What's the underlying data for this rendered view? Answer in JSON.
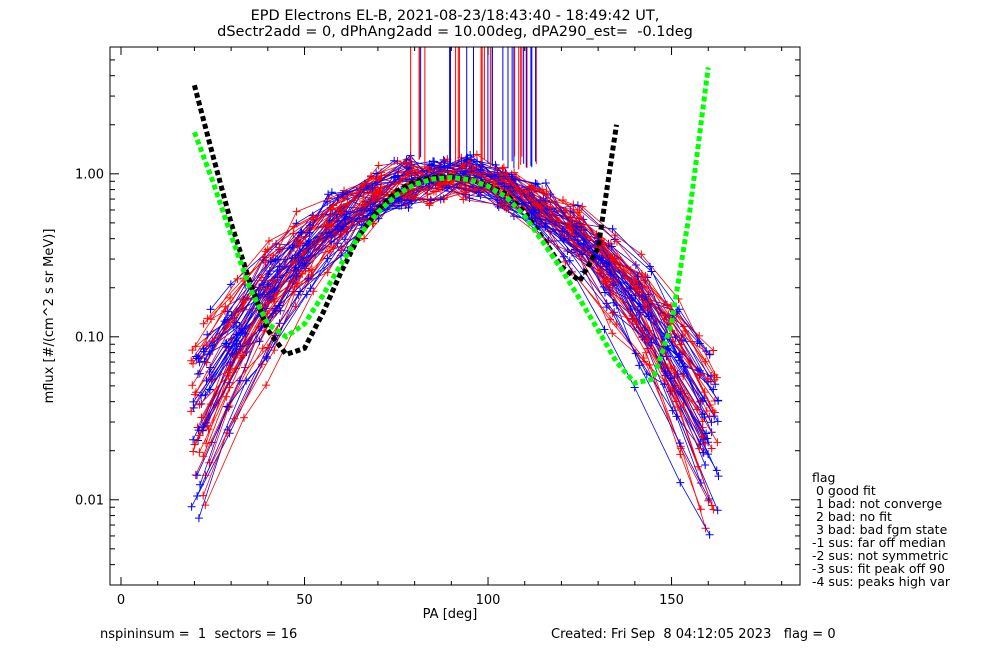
{
  "header": {
    "title_line1": "EPD Electrons EL-B, 2021-08-23/18:43:40 - 18:49:42 UT,",
    "title_line2": "dSectr2add = 0, dPhAng2add = 10.00deg, dPA290_est=  -0.1deg"
  },
  "footer": {
    "left": "nspininsum =  1  sectors = 16",
    "right": "Created: Fri Sep  8 04:12:05 2023   flag = 0"
  },
  "legend": {
    "title": "flag",
    "items": [
      " 0 good fit",
      " 1 bad: not converge",
      " 2 bad: no fit",
      " 3 bad: bad fgm state",
      "-1 sus: far off median",
      "-2 sus: not symmetric",
      "-3 sus: fit peak off 90",
      "-4 sus: peaks high var"
    ]
  },
  "colors": {
    "red": "#ff0000",
    "blue": "#0000ff",
    "black": "#000000",
    "green": "#00ff00"
  },
  "chart_data": {
    "type": "line",
    "title": "EPD Electrons EL-B, 2021-08-23/18:43:40 - 18:49:42 UT,",
    "xlabel": "PA [deg]",
    "ylabel": "mflux [#/(cm^2 s sr MeV)]",
    "xlim": [
      -3,
      185
    ],
    "ylim": [
      0.003,
      6
    ],
    "yscale": "log",
    "xticks": [
      0,
      50,
      100,
      150
    ],
    "xtick_labels": [
      "0",
      "50",
      "100",
      "150"
    ],
    "yticks": [
      0.01,
      0.1,
      1.0
    ],
    "ytick_labels": [
      "0.01",
      "0.10",
      "1.00"
    ],
    "series": [
      {
        "color": "black",
        "style": "dashed",
        "x": [
          20,
          25,
          30,
          35,
          40,
          45,
          50,
          55,
          60,
          65,
          70,
          75,
          80,
          85,
          90,
          95,
          100,
          105,
          110,
          115,
          120,
          125,
          130,
          135
        ],
        "y": [
          3.5,
          1.3,
          0.5,
          0.22,
          0.11,
          0.078,
          0.085,
          0.14,
          0.25,
          0.42,
          0.6,
          0.78,
          0.9,
          0.95,
          0.96,
          0.92,
          0.85,
          0.75,
          0.58,
          0.4,
          0.27,
          0.22,
          0.35,
          2.0
        ]
      },
      {
        "color": "green",
        "style": "dashed",
        "x": [
          20,
          25,
          30,
          35,
          40,
          45,
          50,
          55,
          60,
          65,
          70,
          75,
          80,
          85,
          90,
          95,
          100,
          105,
          110,
          115,
          120,
          125,
          130,
          135,
          140,
          145,
          150,
          155,
          160
        ],
        "y": [
          1.8,
          0.9,
          0.42,
          0.2,
          0.12,
          0.1,
          0.12,
          0.18,
          0.28,
          0.42,
          0.58,
          0.74,
          0.86,
          0.93,
          0.95,
          0.92,
          0.84,
          0.72,
          0.55,
          0.38,
          0.26,
          0.17,
          0.11,
          0.07,
          0.052,
          0.055,
          0.12,
          0.6,
          4.5
        ]
      }
    ]
  }
}
